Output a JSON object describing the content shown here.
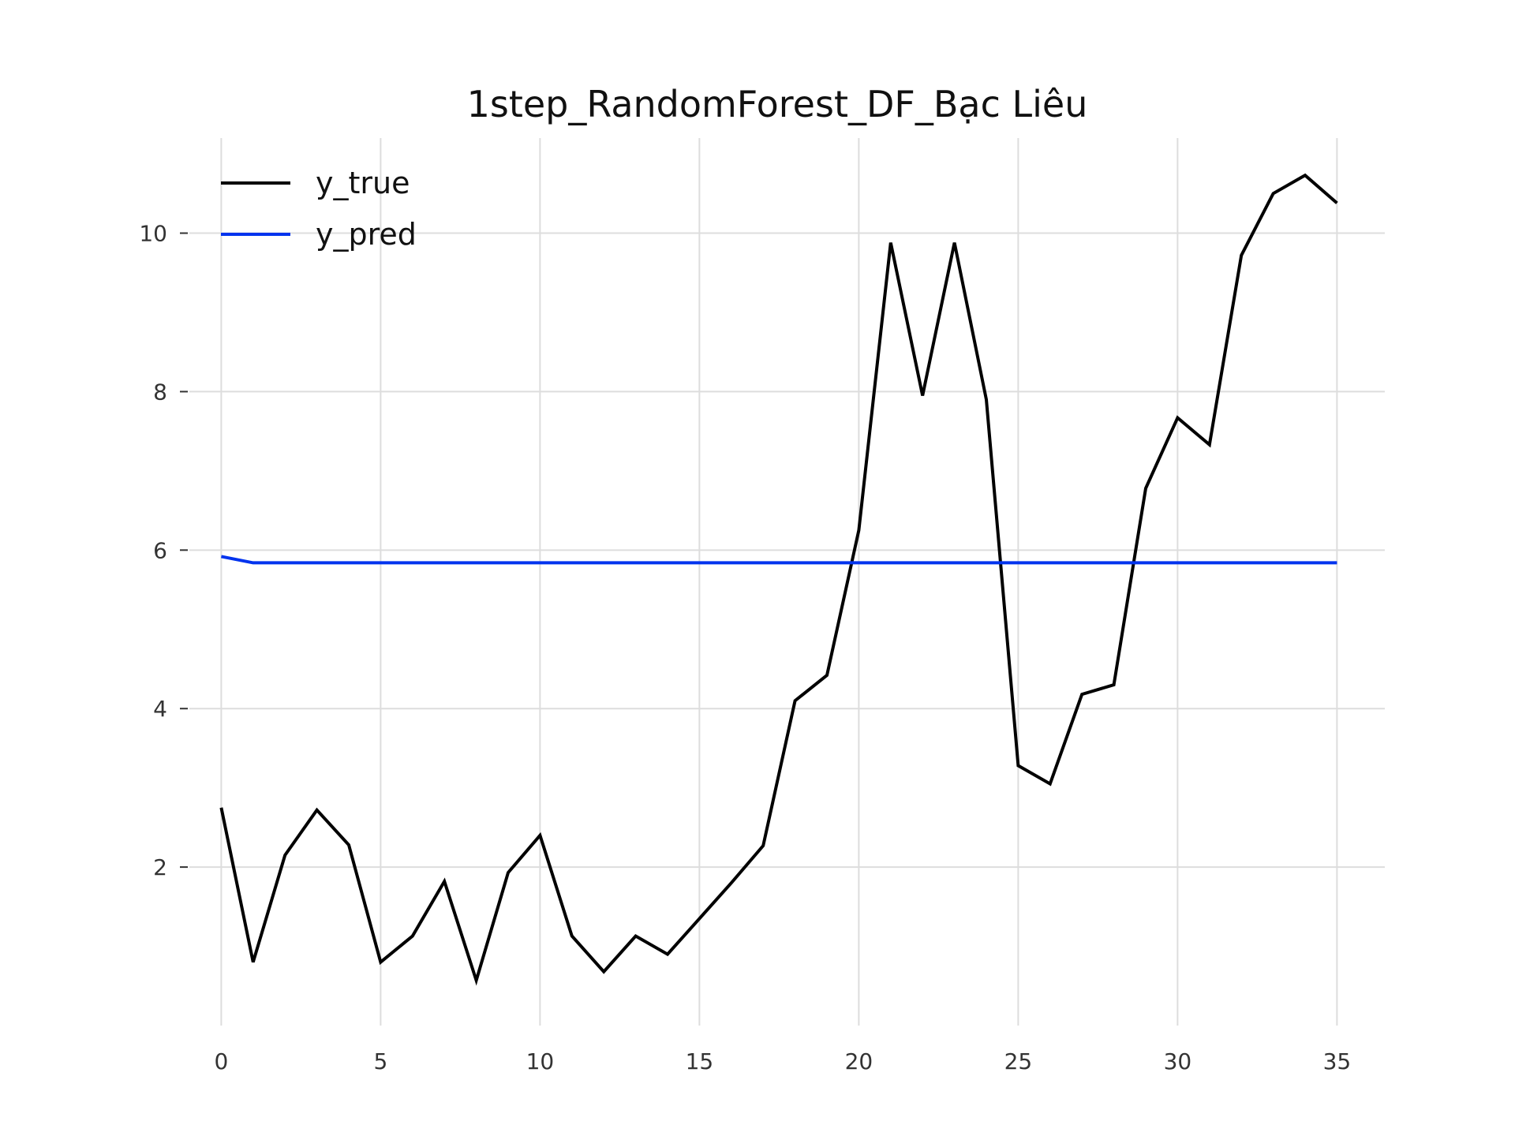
{
  "chart_data": {
    "type": "line",
    "title": "1step_RandomForest_DF_Bạc Liêu",
    "xlabel": "",
    "ylabel": "",
    "xlim": [
      -1,
      36.5
    ],
    "ylim": [
      0,
      11.2
    ],
    "x_ticks": [
      0,
      5,
      10,
      15,
      20,
      25,
      30,
      35
    ],
    "y_ticks": [
      2,
      4,
      6,
      8,
      10
    ],
    "grid": true,
    "legend_position": "top-left",
    "x": [
      0,
      1,
      2,
      3,
      4,
      5,
      6,
      7,
      8,
      9,
      10,
      11,
      12,
      13,
      14,
      15,
      16,
      17,
      18,
      19,
      20,
      21,
      22,
      23,
      24,
      25,
      26,
      27,
      28,
      29,
      30,
      31,
      32,
      33,
      34,
      35
    ],
    "series": [
      {
        "name": "y_true",
        "color": "#000000",
        "values": [
          2.75,
          0.8,
          2.15,
          2.72,
          2.28,
          0.8,
          1.13,
          1.82,
          0.57,
          1.93,
          2.4,
          1.13,
          0.68,
          1.13,
          0.9,
          1.35,
          1.8,
          2.27,
          4.1,
          4.42,
          6.25,
          9.88,
          7.95,
          9.88,
          7.9,
          3.28,
          3.05,
          4.18,
          4.3,
          6.78,
          7.67,
          7.33,
          9.72,
          10.5,
          10.73,
          10.38
        ]
      },
      {
        "name": "y_pred",
        "color": "#0033ee",
        "values": [
          5.92,
          5.84,
          5.84,
          5.84,
          5.84,
          5.84,
          5.84,
          5.84,
          5.84,
          5.84,
          5.84,
          5.84,
          5.84,
          5.84,
          5.84,
          5.84,
          5.84,
          5.84,
          5.84,
          5.84,
          5.84,
          5.84,
          5.84,
          5.84,
          5.84,
          5.84,
          5.84,
          5.84,
          5.84,
          5.84,
          5.84,
          5.84,
          5.84,
          5.84,
          5.84,
          5.84
        ]
      }
    ]
  }
}
